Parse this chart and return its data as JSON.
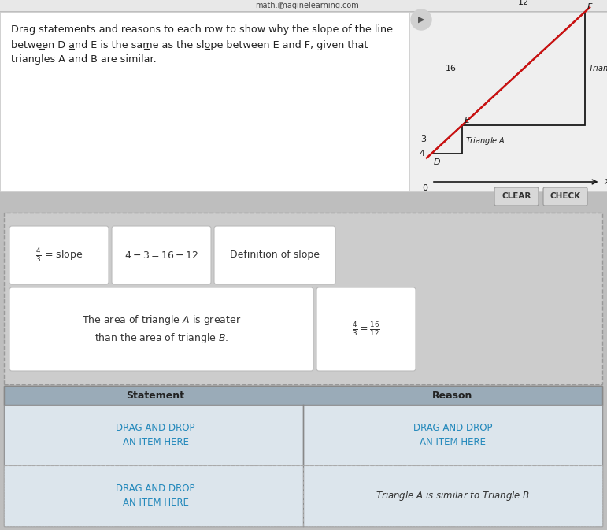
{
  "bg_color": "#bebebe",
  "top_bar_text": "math.imaginelearning.com",
  "top_bar_color": "#e8e8e8",
  "top_bar_text_color": "#444444",
  "header_bg": "#ffffff",
  "header_text_line1": "Drag statements and reasons to each row to show why the slope of the line",
  "header_text_line2": "between D and E is the same as the slope between E and F, given that",
  "header_text_line3": "triangles A and B are similar.",
  "header_text_color": "#222222",
  "graph_bg": "#efefef",
  "graph_line_color": "#1a1a1a",
  "graph_slope_color": "#cc1111",
  "axis_label_color": "#1a1a1a",
  "clear_btn_color": "#d8d8d8",
  "check_btn_color": "#d8d8d8",
  "btn_text_color": "#333333",
  "drag_area_bg": "#cccccc",
  "card_bg": "#ffffff",
  "card_border": "#bbbbbb",
  "card_text_color": "#333333",
  "card1_text": "$\\frac{4}{3}$ = slope",
  "card2_text": "$4 - 3 = 16 - 12$",
  "card3_text": "Definition of slope",
  "card4_text": "The area of triangle $\\mathit{A}$ is greater\nthan the area of triangle $\\mathit{B}$.",
  "card5_text": "$\\frac{4}{3} = \\frac{16}{12}$",
  "table_header_bg": "#9aabb8",
  "table_header_text": "#222222",
  "table_row1_bg": "#dce5ec",
  "table_row2_bg": "#dce5ec",
  "table_border": "#888888",
  "drag_text_color": "#2288bb",
  "row1_statement": "DRAG AND DROP\nAN ITEM HERE",
  "row1_reason": "DRAG AND DROP\nAN ITEM HERE",
  "row2_statement": "DRAG AND DROP\nAN ITEM HERE",
  "row2_reason": "Triangle $\\mathit{A}$ is similar to Triangle $\\mathit{B}$",
  "similar_text_color": "#333333",
  "underline_color": "#222222"
}
